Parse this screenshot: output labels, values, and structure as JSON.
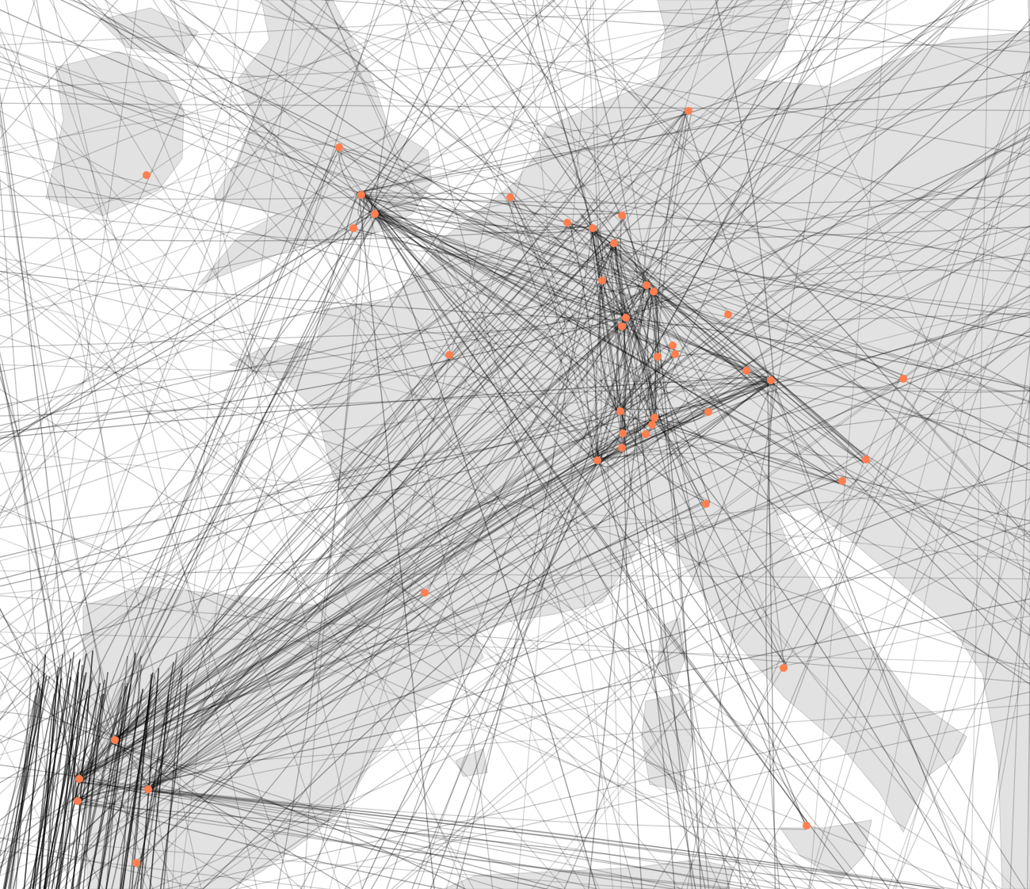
{
  "map": {
    "background_color": "#ffffff",
    "land_color": "#e2e2e2",
    "border_color": "#c8c8c8",
    "track_color": "#000000",
    "airport_color": "#ff7f50",
    "layers": [
      "land",
      "flight-tracks",
      "airports"
    ]
  }
}
